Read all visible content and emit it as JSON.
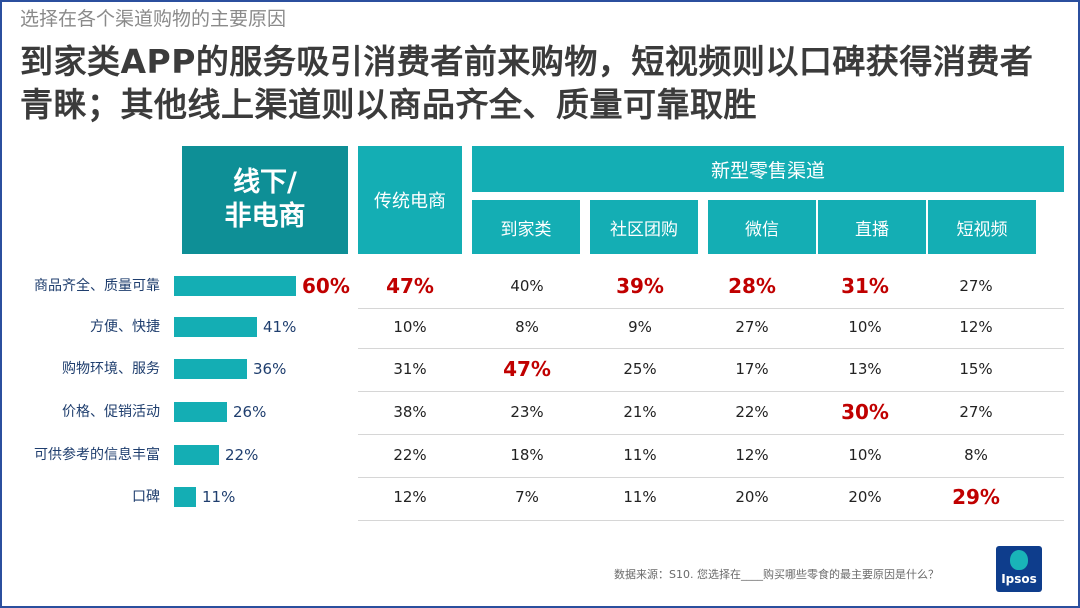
{
  "subtitle": "选择在各个渠道购物的主要原因",
  "headline": "到家类APP的服务吸引消费者前来购物，短视频则以口碑获得消费者青睐；其他线上渠道则以商品齐全、质量可靠取胜",
  "colors": {
    "teal": "#14aeb4",
    "teal_dark": "#0e8f96",
    "highlight": "#c00000",
    "brand_blue": "#0e3d8c"
  },
  "chart_data": {
    "type": "table",
    "offline_label_line1": "线下/",
    "offline_label_line2": "非电商",
    "traditional_label": "传统电商",
    "new_retail_group": "新型零售渠道",
    "new_retail_channels": [
      "到家类",
      "社区团购",
      "微信",
      "直播",
      "短视频"
    ],
    "rows": [
      {
        "reason": "商品齐全、质量可靠",
        "offline": 60,
        "offline_label": "60%",
        "offline_highlight": true,
        "cells": [
          {
            "v": "47%",
            "hl": true
          },
          {
            "v": "40%",
            "hl": false
          },
          {
            "v": "39%",
            "hl": true
          },
          {
            "v": "28%",
            "hl": true
          },
          {
            "v": "31%",
            "hl": true
          },
          {
            "v": "27%",
            "hl": false
          }
        ]
      },
      {
        "reason": "方便、快捷",
        "offline": 41,
        "offline_label": "41%",
        "offline_highlight": false,
        "cells": [
          {
            "v": "10%",
            "hl": false
          },
          {
            "v": "8%",
            "hl": false
          },
          {
            "v": "9%",
            "hl": false
          },
          {
            "v": "27%",
            "hl": false
          },
          {
            "v": "10%",
            "hl": false
          },
          {
            "v": "12%",
            "hl": false
          }
        ]
      },
      {
        "reason": "购物环境、服务",
        "offline": 36,
        "offline_label": "36%",
        "offline_highlight": false,
        "cells": [
          {
            "v": "31%",
            "hl": false
          },
          {
            "v": "47%",
            "hl": true
          },
          {
            "v": "25%",
            "hl": false
          },
          {
            "v": "17%",
            "hl": false
          },
          {
            "v": "13%",
            "hl": false
          },
          {
            "v": "15%",
            "hl": false
          }
        ]
      },
      {
        "reason": "价格、促销活动",
        "offline": 26,
        "offline_label": "26%",
        "offline_highlight": false,
        "cells": [
          {
            "v": "38%",
            "hl": false
          },
          {
            "v": "23%",
            "hl": false
          },
          {
            "v": "21%",
            "hl": false
          },
          {
            "v": "22%",
            "hl": false
          },
          {
            "v": "30%",
            "hl": true
          },
          {
            "v": "27%",
            "hl": false
          }
        ]
      },
      {
        "reason": "可供参考的信息丰富",
        "offline": 22,
        "offline_label": "22%",
        "offline_highlight": false,
        "cells": [
          {
            "v": "22%",
            "hl": false
          },
          {
            "v": "18%",
            "hl": false
          },
          {
            "v": "11%",
            "hl": false
          },
          {
            "v": "12%",
            "hl": false
          },
          {
            "v": "10%",
            "hl": false
          },
          {
            "v": "8%",
            "hl": false
          }
        ]
      },
      {
        "reason": "口碑",
        "offline": 11,
        "offline_label": "11%",
        "offline_highlight": false,
        "cells": [
          {
            "v": "12%",
            "hl": false
          },
          {
            "v": "7%",
            "hl": false
          },
          {
            "v": "11%",
            "hl": false
          },
          {
            "v": "20%",
            "hl": false
          },
          {
            "v": "20%",
            "hl": false
          },
          {
            "v": "29%",
            "hl": true
          }
        ]
      }
    ]
  },
  "source": "数据来源：S10. 您选择在____购买哪些零食的最主要原因是什么？",
  "logo_text": "Ipsos"
}
